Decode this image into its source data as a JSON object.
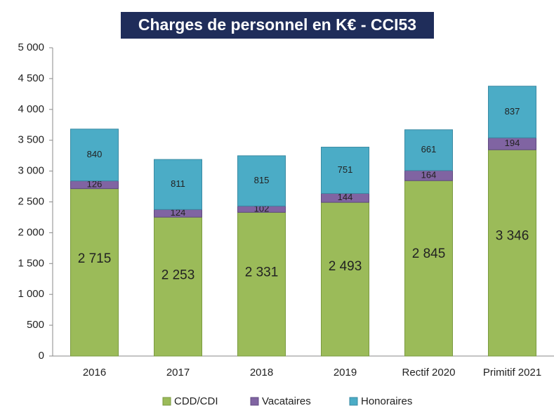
{
  "chart_data": {
    "type": "stacked_bar",
    "title": "Charges de personnel en K€ - CCI53",
    "categories": [
      "2016",
      "2017",
      "2018",
      "2019",
      "Rectif 2020",
      "Primitif 2021"
    ],
    "series": [
      {
        "name": "CDD/CDI",
        "color": "#9bbb59",
        "values": [
          2715,
          2253,
          2331,
          2493,
          2845,
          3346
        ],
        "value_labels": [
          "2 715",
          "2 253",
          "2 331",
          "2 493",
          "2 845",
          "3 346"
        ]
      },
      {
        "name": "Vacataires",
        "color": "#8064a2",
        "values": [
          126,
          124,
          102,
          144,
          164,
          194
        ]
      },
      {
        "name": "Honoraires",
        "color": "#4bacc6",
        "values": [
          840,
          811,
          815,
          751,
          661,
          837
        ]
      }
    ],
    "ylim": [
      0,
      5000
    ],
    "yticks": [
      0,
      500,
      {
        "value": 1000,
        "label": "1 000"
      },
      {
        "value": 1500,
        "label": "1 500"
      },
      {
        "value": 2000,
        "label": "2 000"
      },
      {
        "value": 2500,
        "label": "2 500"
      },
      {
        "value": 3000,
        "label": "3 000"
      },
      {
        "value": 3500,
        "label": "3 500"
      },
      {
        "value": 4000,
        "label": "4 000"
      },
      {
        "value": 4500,
        "label": "4 500"
      },
      {
        "value": 5000,
        "label": "5 000"
      }
    ],
    "legend": "bottom"
  }
}
